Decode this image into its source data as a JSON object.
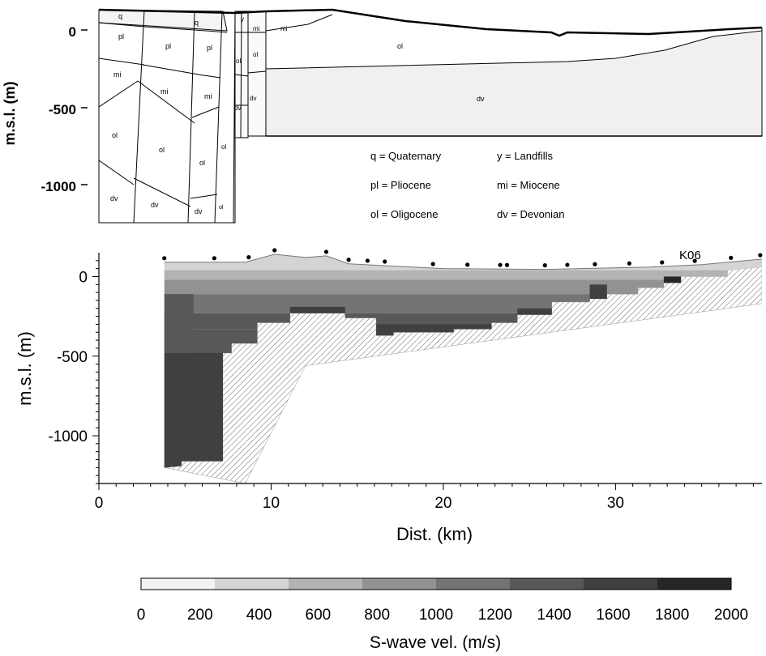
{
  "chart_data": [
    {
      "type": "cross-section",
      "ylabel": "m.s.l. (m)",
      "yticks": [
        0,
        -500,
        -1000
      ],
      "units": [
        {
          "code": "q",
          "label": "q = Quaternary"
        },
        {
          "code": "pl",
          "label": "pl = Pliocene"
        },
        {
          "code": "ol",
          "label": "ol = Oligocene"
        },
        {
          "code": "y",
          "label": "y = Landfills"
        },
        {
          "code": "mi",
          "label": "mi = Miocene"
        },
        {
          "code": "dv",
          "label": "dv = Devonian"
        }
      ],
      "unit_labels": [
        "q",
        "pl",
        "mi",
        "ol",
        "dv",
        "pl",
        "mi",
        "ol",
        "dv",
        "q",
        "pl",
        "mi",
        "ol",
        "dv",
        "ol",
        "ol",
        "dv",
        "y",
        "mi",
        "mi",
        "ol",
        "dv",
        "ol",
        "ol",
        "dv"
      ]
    },
    {
      "type": "heatmap",
      "xlabel": "Dist. (km)",
      "ylabel": "m.s.l. (m)",
      "xlim": [
        0,
        38.5
      ],
      "ylim": [
        -1300,
        150
      ],
      "xticks": [
        0,
        10,
        20,
        30
      ],
      "yticks": [
        0,
        -500,
        -1000
      ],
      "station_label": "K06",
      "stations_km": [
        3.8,
        6.7,
        8.7,
        10.2,
        13.2,
        14.5,
        15.6,
        16.6,
        19.4,
        21.4,
        23.3,
        23.7,
        25.9,
        27.2,
        28.8,
        30.8,
        32.7,
        34.6,
        36.7,
        38.4
      ],
      "bedrock_top": [
        [
          3.8,
          -1200
        ],
        [
          4.8,
          -1190
        ],
        [
          4.8,
          -1160
        ],
        [
          7.2,
          -1160
        ],
        [
          7.2,
          -480
        ],
        [
          7.7,
          -480
        ],
        [
          7.7,
          -420
        ],
        [
          9.2,
          -420
        ],
        [
          9.2,
          -290
        ],
        [
          11.1,
          -290
        ],
        [
          11.1,
          -230
        ],
        [
          14.3,
          -230
        ],
        [
          14.3,
          -260
        ],
        [
          16.1,
          -260
        ],
        [
          16.1,
          -370
        ],
        [
          17.1,
          -370
        ],
        [
          17.1,
          -350
        ],
        [
          20.6,
          -350
        ],
        [
          20.6,
          -330
        ],
        [
          22.8,
          -330
        ],
        [
          22.8,
          -290
        ],
        [
          24.3,
          -290
        ],
        [
          24.3,
          -240
        ],
        [
          26.3,
          -240
        ],
        [
          26.3,
          -160
        ],
        [
          28.5,
          -160
        ],
        [
          28.5,
          -140
        ],
        [
          29.5,
          -140
        ],
        [
          29.5,
          -110
        ],
        [
          31.3,
          -110
        ],
        [
          31.3,
          -70
        ],
        [
          32.8,
          -70
        ],
        [
          32.8,
          -40
        ],
        [
          33.8,
          -40
        ],
        [
          33.8,
          0
        ],
        [
          36.5,
          0
        ],
        [
          36.5,
          40
        ],
        [
          38.5,
          60
        ]
      ],
      "basement_edge": [
        [
          38.5,
          -170
        ],
        [
          12,
          -560
        ],
        [
          8.5,
          -1300
        ]
      ],
      "surface": [
        [
          3.8,
          90
        ],
        [
          8.5,
          90
        ],
        [
          10.2,
          140
        ],
        [
          12,
          120
        ],
        [
          13.2,
          130
        ],
        [
          14.5,
          80
        ],
        [
          20,
          50
        ],
        [
          26,
          45
        ],
        [
          32,
          60
        ],
        [
          35,
          75
        ],
        [
          38.5,
          110
        ]
      ],
      "colorbar": {
        "label": "S-wave vel. (m/s)",
        "range": [
          0,
          2000
        ],
        "ticks": [
          0,
          200,
          400,
          600,
          800,
          1000,
          1200,
          1400,
          1600,
          1800,
          2000
        ],
        "colors": [
          "#f2f2f2",
          "#d4d4d4",
          "#b3b3b3",
          "#929292",
          "#747474",
          "#585858",
          "#404040",
          "#262626"
        ]
      }
    }
  ]
}
